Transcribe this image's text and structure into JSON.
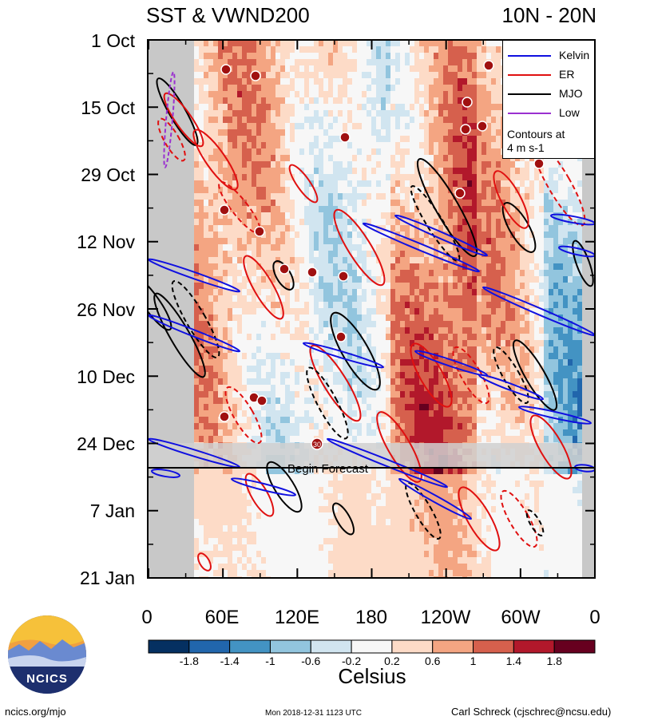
{
  "chart_data": {
    "type": "heatmap",
    "title": "SST & VWND200",
    "subtitle": "10N - 20N",
    "y_ticks": [
      "1 Oct",
      "15 Oct",
      "29 Oct",
      "12 Nov",
      "26 Nov",
      "10 Dec",
      "24 Dec",
      "7 Jan",
      "21 Jan"
    ],
    "x_ticks": [
      "0",
      "60E",
      "120E",
      "180",
      "120W",
      "60W",
      "0"
    ],
    "x_range": [
      "0",
      "0"
    ],
    "y_range": [
      "1 Oct",
      "21 Jan"
    ],
    "colorbar": {
      "label": "Celsius",
      "tick_labels": [
        "-1.8",
        "-1.4",
        "-1",
        "-0.6",
        "-0.2",
        "0.2",
        "0.6",
        "1",
        "1.4",
        "1.8"
      ],
      "levels": [
        -2.2,
        -1.8,
        -1.4,
        -1.0,
        -0.6,
        -0.2,
        0.2,
        0.6,
        1.0,
        1.4,
        1.8,
        2.2
      ],
      "colors": [
        "#053061",
        "#2166ac",
        "#4393c3",
        "#92c5de",
        "#d1e5f0",
        "#f7f7f7",
        "#fddbc7",
        "#f4a582",
        "#d6604d",
        "#b2182b",
        "#67001f"
      ]
    },
    "forecast_annotation": "Begin Forecast",
    "forecast_start": "30 Dec",
    "contour_note": "Contours at\n4 m s-1",
    "legend_entries": [
      {
        "label": "Kelvin",
        "color": "#1010e0"
      },
      {
        "label": "ER",
        "color": "#e01010"
      },
      {
        "label": "MJO",
        "color": "#000000"
      },
      {
        "label": "Low",
        "color": "#9a30d0"
      }
    ],
    "storm_markers": [
      "30"
    ],
    "grid": false,
    "legend_position": "top-right"
  },
  "logo": {
    "text": "NCICS"
  },
  "footer": {
    "site": "ncics.org/mjo",
    "timestamp": "Mon 2018-12-31 1123 UTC",
    "credit": "Carl Schreck (cjschrec@ncsu.edu)"
  }
}
